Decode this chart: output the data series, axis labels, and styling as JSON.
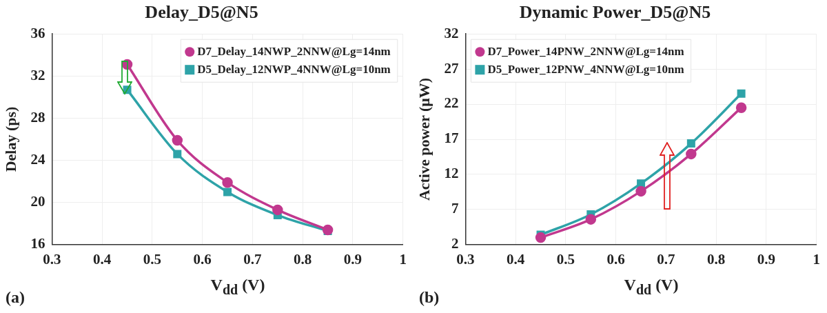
{
  "chart_data": [
    {
      "type": "line",
      "title": "Delay_D5@N5",
      "xlabel": "V$_{dd}$ (V)",
      "ylabel": "Delay (ps)",
      "annotations": [
        "(a)"
      ],
      "x": [
        0.45,
        0.55,
        0.65,
        0.75,
        0.85
      ],
      "xlim": [
        0.3,
        1
      ],
      "xticks": [
        0.3,
        0.4,
        0.5,
        0.6,
        0.7,
        0.8,
        0.9,
        1
      ],
      "ylim": [
        16,
        36
      ],
      "yticks": [
        16,
        20,
        24,
        28,
        32,
        36
      ],
      "grid": true,
      "legend": "top right",
      "series": [
        {
          "name": "D7_Delay_14NWP_2NNW@Lg=14nm",
          "color": "#c1388e",
          "marker": "circle",
          "values": [
            33.1,
            25.9,
            21.9,
            19.3,
            17.4
          ]
        },
        {
          "name": "D5_Delay_12NWP_4NNW@Lg=10nm",
          "color": "#2ea3a8",
          "marker": "square",
          "values": [
            30.7,
            24.6,
            21.0,
            18.8,
            17.3
          ]
        }
      ]
    },
    {
      "type": "line",
      "title": "Dynamic Power_D5@N5",
      "xlabel": "V$_{dd}$ (V)",
      "ylabel": "Active power (μW)",
      "annotations": [
        "(b)"
      ],
      "x": [
        0.45,
        0.55,
        0.65,
        0.75,
        0.85
      ],
      "xlim": [
        0.3,
        1
      ],
      "xticks": [
        0.3,
        0.4,
        0.5,
        0.6,
        0.7,
        0.8,
        0.9,
        1
      ],
      "ylim": [
        2,
        32
      ],
      "yticks": [
        2,
        7,
        12,
        17,
        22,
        27,
        32
      ],
      "grid": true,
      "legend": "top left",
      "series": [
        {
          "name": "D7_Power_14PNW_2NNW@Lg=14nm",
          "color": "#c1388e",
          "marker": "circle",
          "values": [
            3.0,
            5.6,
            9.6,
            14.9,
            21.5
          ]
        },
        {
          "name": "D5_Power_12PNW_4NNW@Lg=10nm",
          "color": "#2ea3a8",
          "marker": "square",
          "values": [
            3.4,
            6.3,
            10.7,
            16.4,
            23.5
          ]
        }
      ]
    }
  ]
}
